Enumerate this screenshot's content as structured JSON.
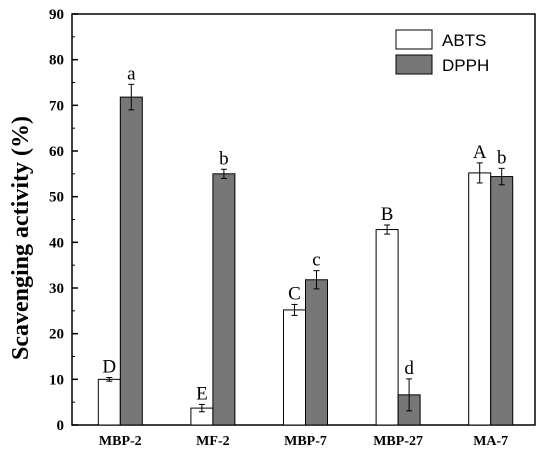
{
  "chart_data": {
    "type": "bar",
    "ylabel": "Scavenging activity (%)",
    "xlabel": "",
    "ylim": [
      0,
      90
    ],
    "yticks": [
      0,
      10,
      20,
      30,
      40,
      50,
      60,
      70,
      80,
      90
    ],
    "categories": [
      "MBP-2",
      "MF-2",
      "MBP-7",
      "MBP-27",
      "MA-7"
    ],
    "series": [
      {
        "name": "ABTS",
        "color": "#ffffff",
        "values": [
          10.0,
          3.7,
          25.2,
          42.8,
          55.2
        ],
        "errors": [
          0.4,
          0.8,
          1.2,
          1.0,
          2.2
        ],
        "labels": [
          "D",
          "E",
          "C",
          "B",
          "A"
        ]
      },
      {
        "name": "DPPH",
        "color": "#777777",
        "values": [
          71.8,
          55.0,
          31.8,
          6.6,
          54.4
        ],
        "errors": [
          2.8,
          1.0,
          2.0,
          3.5,
          1.8
        ],
        "labels": [
          "a",
          "b",
          "c",
          "d",
          "b"
        ]
      }
    ],
    "legend_position": "top-right",
    "grid": false
  }
}
